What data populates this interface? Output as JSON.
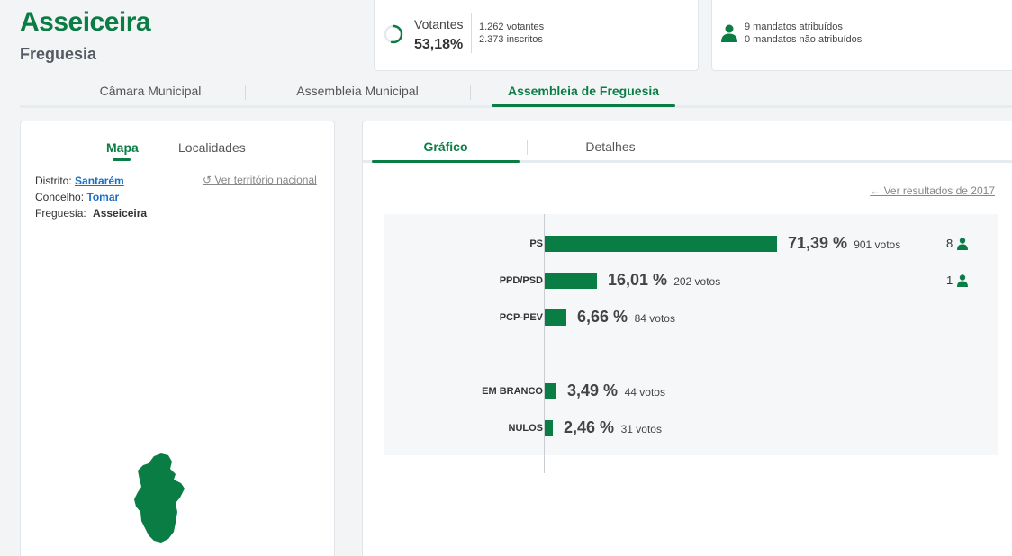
{
  "header": {
    "title": "Asseiceira",
    "subtitle": "Freguesia"
  },
  "summary": {
    "votantes_label": "Votantes",
    "votantes_pct": "53,18%",
    "votantes_progress": 0.5318,
    "votantes_count": "1.262 votantes",
    "inscritos_count": "2.373 inscritos",
    "mandatos_atribuidos": "9 mandatos atribuídos",
    "mandatos_nao_atribuidos": "0 mandatos não atribuídos",
    "icons": {
      "votantes": "progress-ring-icon",
      "mandatos": "person-icon"
    }
  },
  "main_tabs": [
    {
      "label": "Câmara Municipal",
      "active": false
    },
    {
      "label": "Assembleia Municipal",
      "active": false
    },
    {
      "label": "Assembleia de Freguesia",
      "active": true
    }
  ],
  "left": {
    "tabs": [
      {
        "label": "Mapa",
        "active": true
      },
      {
        "label": "Localidades",
        "active": false
      }
    ],
    "distrito_label": "Distrito:",
    "distrito_value": "Santarém",
    "concelho_label": "Concelho:",
    "concelho_value": "Tomar",
    "freguesia_label": "Freguesia:",
    "freguesia_value": "Asseiceira",
    "ver_nacional": "Ver território nacional",
    "icons": {
      "ver_nacional": "undo-icon",
      "map": "freguesia-map-shape"
    }
  },
  "right": {
    "tabs": [
      {
        "label": "Gráfico",
        "active": true
      },
      {
        "label": "Detalhes",
        "active": false
      }
    ],
    "ver_resultados": "Ver resultados de 2017",
    "icons": {
      "ver_resultados": "arrow-left-icon",
      "mandate": "person-icon"
    }
  },
  "colors": {
    "accent": "#0a7d45",
    "link": "#1a6fc4"
  },
  "chart_data": {
    "type": "bar",
    "orientation": "horizontal",
    "categories": [
      "PS",
      "PPD/PSD",
      "PCP-PEV",
      "EM BRANCO",
      "NULOS"
    ],
    "values": [
      71.39,
      16.01,
      6.66,
      3.49,
      2.46
    ],
    "value_labels": [
      "71,39 %",
      "16,01 %",
      "6,66 %",
      "3,49 %",
      "2,46 %"
    ],
    "votes_labels": [
      "901 votos",
      "202 votos",
      "84 votos",
      "44 votos",
      "31 votos"
    ],
    "mandates": [
      "8",
      "1",
      "",
      "",
      ""
    ],
    "xlim": [
      0,
      71.39
    ]
  }
}
